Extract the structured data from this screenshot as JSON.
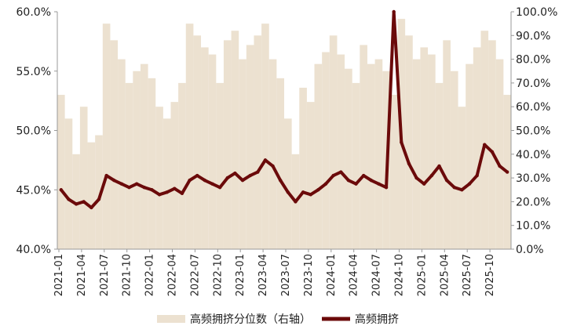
{
  "chart_data": {
    "type": "line",
    "title": "",
    "xlabel": "",
    "ylabel": "",
    "left_axis": {
      "ylim": [
        0.4,
        0.6
      ],
      "ticks": [
        "40.0%",
        "45.0%",
        "50.0%",
        "55.0%",
        "60.0%"
      ]
    },
    "right_axis": {
      "ylim": [
        0.0,
        1.0
      ],
      "ticks": [
        "0.0%",
        "10.0%",
        "20.0%",
        "30.0%",
        "40.0%",
        "50.0%",
        "60.0%",
        "70.0%",
        "80.0%",
        "90.0%",
        "100.0%"
      ]
    },
    "x_ticks": [
      "2021-01",
      "2021-04",
      "2021-07",
      "2021-10",
      "2022-01",
      "2022-04",
      "2022-07",
      "2022-10",
      "2023-01",
      "2023-04",
      "2023-07",
      "2023-10",
      "2024-01",
      "2024-04",
      "2024-07",
      "2024-10",
      "2025-01",
      "2025-04",
      "2025-07",
      "2025-10"
    ],
    "legend_position": "bottom",
    "grid": false,
    "colors": {
      "area": "#ece1d0",
      "line": "#6b0a0a"
    },
    "series": [
      {
        "name": "高频拥挤分位数（右轴）",
        "axis": "right",
        "kind": "area",
        "x": [
          "2021-01",
          "2021-02",
          "2021-03",
          "2021-04",
          "2021-05",
          "2021-06",
          "2021-07",
          "2021-08",
          "2021-09",
          "2021-10",
          "2021-11",
          "2021-12",
          "2022-01",
          "2022-02",
          "2022-03",
          "2022-04",
          "2022-05",
          "2022-06",
          "2022-07",
          "2022-08",
          "2022-09",
          "2022-10",
          "2022-11",
          "2022-12",
          "2023-01",
          "2023-02",
          "2023-03",
          "2023-04",
          "2023-05",
          "2023-06",
          "2023-07",
          "2023-08",
          "2023-09",
          "2023-10",
          "2023-11",
          "2023-12",
          "2024-01",
          "2024-02",
          "2024-03",
          "2024-04",
          "2024-05",
          "2024-06",
          "2024-07",
          "2024-08",
          "2024-09",
          "2024-10",
          "2024-11",
          "2024-12",
          "2025-01",
          "2025-02",
          "2025-03",
          "2025-04",
          "2025-05",
          "2025-06",
          "2025-07",
          "2025-08",
          "2025-09",
          "2025-10",
          "2025-11",
          "2025-12"
        ],
        "values": [
          0.65,
          0.55,
          0.4,
          0.6,
          0.45,
          0.48,
          0.95,
          0.88,
          0.8,
          0.7,
          0.75,
          0.78,
          0.72,
          0.6,
          0.55,
          0.62,
          0.7,
          0.95,
          0.9,
          0.85,
          0.82,
          0.7,
          0.88,
          0.92,
          0.8,
          0.86,
          0.9,
          0.95,
          0.8,
          0.72,
          0.55,
          0.4,
          0.68,
          0.62,
          0.78,
          0.83,
          0.9,
          0.82,
          0.76,
          0.7,
          0.86,
          0.78,
          0.8,
          0.75,
          0.65,
          0.97,
          0.9,
          0.8,
          0.85,
          0.82,
          0.7,
          0.88,
          0.75,
          0.6,
          0.78,
          0.85,
          0.92,
          0.88,
          0.8,
          0.65
        ]
      },
      {
        "name": "高频拥挤",
        "axis": "left",
        "kind": "line",
        "x": [
          "2021-01",
          "2021-02",
          "2021-03",
          "2021-04",
          "2021-05",
          "2021-06",
          "2021-07",
          "2021-08",
          "2021-09",
          "2021-10",
          "2021-11",
          "2021-12",
          "2022-01",
          "2022-02",
          "2022-03",
          "2022-04",
          "2022-05",
          "2022-06",
          "2022-07",
          "2022-08",
          "2022-09",
          "2022-10",
          "2022-11",
          "2022-12",
          "2023-01",
          "2023-02",
          "2023-03",
          "2023-04",
          "2023-05",
          "2023-06",
          "2023-07",
          "2023-08",
          "2023-09",
          "2023-10",
          "2023-11",
          "2023-12",
          "2024-01",
          "2024-02",
          "2024-03",
          "2024-04",
          "2024-05",
          "2024-06",
          "2024-07",
          "2024-08",
          "2024-09",
          "2024-10",
          "2024-11",
          "2024-12",
          "2025-01",
          "2025-02",
          "2025-03",
          "2025-04",
          "2025-05",
          "2025-06",
          "2025-07",
          "2025-08",
          "2025-09",
          "2025-10",
          "2025-11",
          "2025-12"
        ],
        "values": [
          0.45,
          0.442,
          0.438,
          0.44,
          0.435,
          0.442,
          0.462,
          0.458,
          0.455,
          0.452,
          0.455,
          0.452,
          0.45,
          0.446,
          0.448,
          0.451,
          0.447,
          0.458,
          0.462,
          0.458,
          0.455,
          0.452,
          0.46,
          0.464,
          0.458,
          0.462,
          0.465,
          0.475,
          0.47,
          0.458,
          0.448,
          0.44,
          0.448,
          0.446,
          0.45,
          0.455,
          0.462,
          0.465,
          0.458,
          0.455,
          0.462,
          0.458,
          0.455,
          0.452,
          0.6,
          0.49,
          0.472,
          0.46,
          0.455,
          0.462,
          0.47,
          0.458,
          0.452,
          0.45,
          0.455,
          0.462,
          0.488,
          0.482,
          0.47,
          0.465
        ]
      }
    ]
  },
  "legend": {
    "area_label": "高频拥挤分位数（右轴）",
    "line_label": "高频拥挤"
  }
}
